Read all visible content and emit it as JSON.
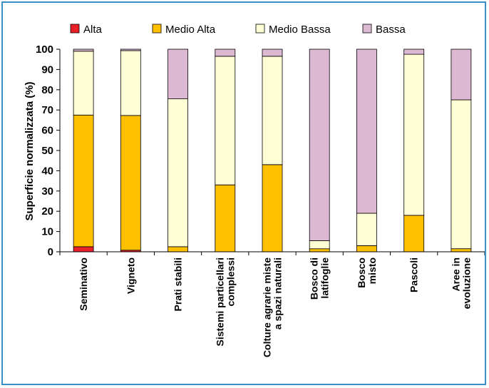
{
  "chart_data": {
    "type": "bar",
    "stacked": true,
    "ylabel": "Superficie normalizzata (%)",
    "xlabel": "",
    "ylim": [
      0,
      100
    ],
    "yticks": [
      0,
      10,
      20,
      30,
      40,
      50,
      60,
      70,
      80,
      90,
      100
    ],
    "grid": false,
    "legend_position": "top",
    "categories": [
      "Seminativo",
      "Vigneto",
      "Prati stabili",
      "Sistemi particellari complessi",
      "Colture agrarie miste a spazi naturali",
      "Bosco di latifoglie",
      "Bosco misto",
      "Pascoli",
      "Aree in evoluzione"
    ],
    "category_lines": [
      [
        "Seminativo"
      ],
      [
        "Vigneto"
      ],
      [
        "Prati stabili"
      ],
      [
        "Sistemi particellari",
        "complessi"
      ],
      [
        "Colture agrarie miste",
        "a spazi naturali"
      ],
      [
        "Bosco di",
        "latifoglie"
      ],
      [
        "Bosco",
        "misto"
      ],
      [
        "Pascoli"
      ],
      [
        "Aree in",
        "evoluzione"
      ]
    ],
    "series": [
      {
        "name": "Alta",
        "color": "#e8202a",
        "values": [
          2.5,
          0.8,
          0,
          0,
          0,
          0,
          0,
          0,
          0
        ]
      },
      {
        "name": "Medio Alta",
        "color": "#ffc000",
        "values": [
          65,
          66.5,
          2.5,
          33,
          43,
          1.5,
          3,
          18,
          1.5
        ]
      },
      {
        "name": "Medio Bassa",
        "color": "#ffffd6",
        "values": [
          31.5,
          32,
          73,
          63.5,
          53.5,
          4,
          16,
          79.5,
          73.5
        ]
      },
      {
        "name": "Bassa",
        "color": "#dcb8d3",
        "values": [
          1,
          0.7,
          24.5,
          3.5,
          3.5,
          94.5,
          81,
          2.5,
          25
        ]
      }
    ]
  }
}
